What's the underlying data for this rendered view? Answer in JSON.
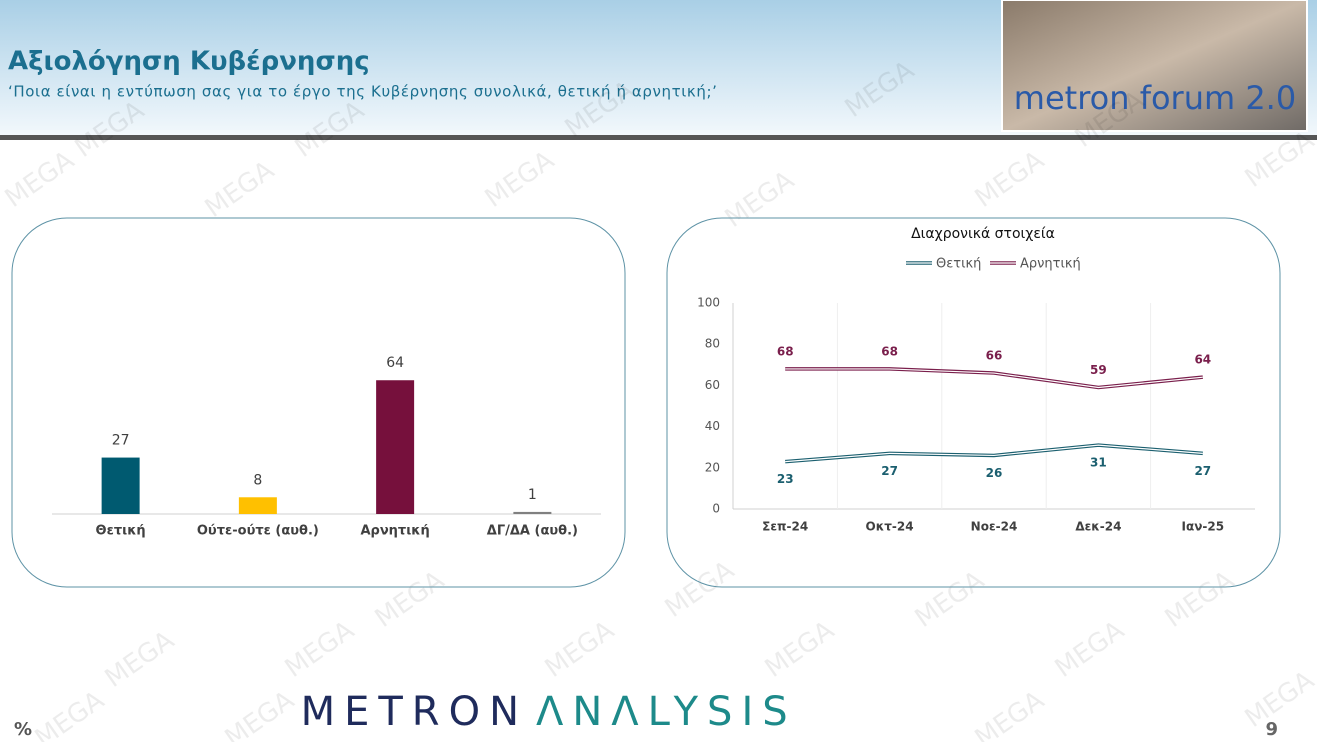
{
  "header": {
    "title": "Αξιολόγηση Κυβέρνησης",
    "subtitle": "‘Ποια είναι η εντύπωση σας για το έργο της Κυβέρνησης συνολικά, θετική ή αρνητική;’"
  },
  "logo_text": "metron forum 2.0",
  "watermark": "MEGA",
  "chart_data": [
    {
      "type": "bar",
      "categories": [
        "Θετική",
        "Ούτε-ούτε (αυθ.)",
        "Αρνητική",
        "ΔΓ/ΔΑ (αυθ.)"
      ],
      "values": [
        27,
        8,
        64,
        1
      ],
      "colors": [
        "#005a70",
        "#ffc000",
        "#76103c",
        "#808080"
      ]
    },
    {
      "type": "line",
      "title": "Διαχρονικά στοιχεία",
      "categories": [
        "Σεπ-24",
        "Οκτ-24",
        "Νοε-24",
        "Δεκ-24",
        "Ιαν-25"
      ],
      "series": [
        {
          "name": "Θετική",
          "color": "#1b5f6f",
          "values": [
            23,
            27,
            26,
            31,
            27
          ]
        },
        {
          "name": "Αρνητική",
          "color": "#7a1f4c",
          "values": [
            68,
            68,
            66,
            59,
            64
          ]
        }
      ],
      "ylim": [
        0,
        100
      ],
      "yticks": [
        0,
        20,
        40,
        60,
        80,
        100
      ],
      "grid": true,
      "legend": "top"
    }
  ],
  "footer": {
    "brand_1": "METRON",
    "brand_2": "ΛNΛLYSIS",
    "unit": "%",
    "page": 9
  }
}
